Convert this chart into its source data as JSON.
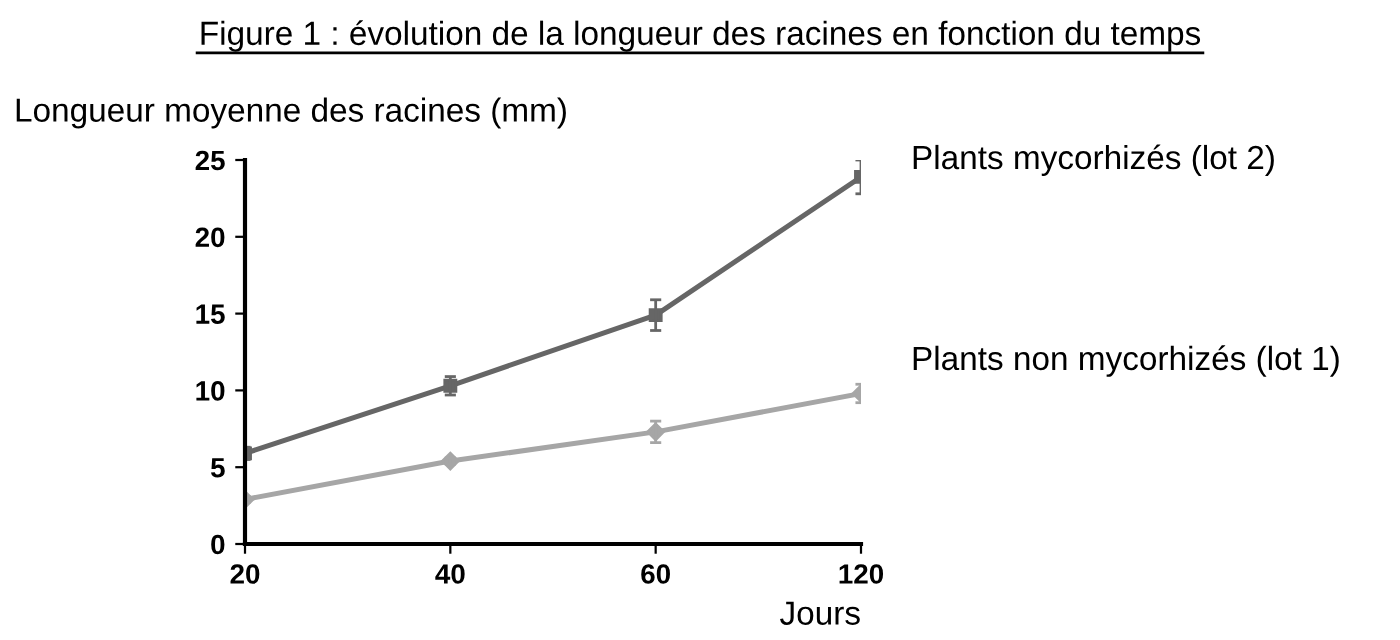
{
  "chart_data": {
    "type": "line",
    "title": "Figure 1 : évolution de la longueur des racines en fonction du temps",
    "ylabel": "Longueur moyenne des racines (mm)",
    "xlabel": "Jours",
    "categories": [
      "20",
      "40",
      "60",
      "120"
    ],
    "series": [
      {
        "name": "Plants mycorhizés (lot 2)",
        "color": "#666666",
        "marker": "square",
        "values": [
          5.9,
          10.3,
          14.9,
          23.9
        ],
        "errors": [
          0.4,
          0.6,
          1.0,
          1.1
        ]
      },
      {
        "name": "Plants non mycorhizés (lot 1)",
        "color": "#a6a6a6",
        "marker": "diamond",
        "values": [
          2.9,
          5.4,
          7.3,
          9.8
        ],
        "errors": [
          0.2,
          0.2,
          0.7,
          0.6
        ]
      }
    ],
    "ylim": [
      0,
      25
    ],
    "yticks": [
      0,
      5,
      10,
      15,
      20,
      25
    ],
    "grid": false,
    "legend": false,
    "line_style": "solid"
  }
}
